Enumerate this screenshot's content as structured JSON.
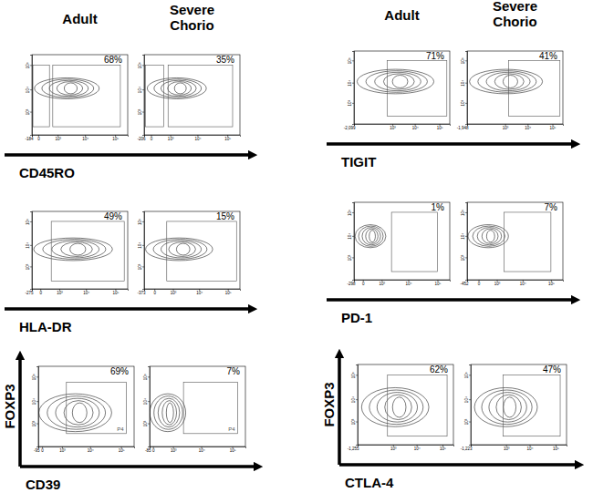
{
  "chart_data": [
    {
      "type": "contour",
      "title": "Adult",
      "xlabel": "CD45RO",
      "xlim": [
        -184,
        262144
      ],
      "ylim": [
        -300,
        262144
      ],
      "xticks": [
        -184,
        0,
        {
          "value": 1000,
          "label": "10³"
        },
        {
          "value": 10000,
          "label": "10⁴"
        },
        {
          "value": 100000,
          "label": "10⁵"
        }
      ],
      "yticks": [
        {
          "value": 1000,
          "label": "10³"
        },
        {
          "value": 10000,
          "label": "10⁴"
        },
        {
          "value": 100000,
          "label": "10⁵"
        }
      ],
      "population": {
        "x": [
          -100,
          30000
        ],
        "y": [
          4000,
          30000
        ]
      },
      "gates": [
        {
          "x": [
            -150,
            400
          ],
          "y": [
            20,
            100000
          ]
        },
        {
          "x": [
            600,
            150000
          ],
          "y": [
            20,
            100000
          ]
        }
      ],
      "values": [
        68
      ],
      "value_labels": [
        "68%"
      ],
      "data_labels": true
    },
    {
      "type": "contour",
      "title": "Severe Chorio",
      "xlim": [
        -206,
        262144
      ],
      "ylim": [
        -300,
        262144
      ],
      "xticks": [
        -206,
        0,
        {
          "value": 1000,
          "label": "10³"
        },
        {
          "value": 10000,
          "label": "10⁴"
        },
        {
          "value": 100000,
          "label": "10⁵"
        }
      ],
      "yticks": [
        {
          "value": 1000,
          "label": "10³"
        },
        {
          "value": 10000,
          "label": "10⁴"
        },
        {
          "value": 100000,
          "label": "10⁵"
        }
      ],
      "population": {
        "x": [
          -100,
          20000
        ],
        "y": [
          4000,
          30000
        ]
      },
      "gates": [
        {
          "x": [
            -150,
            500
          ],
          "y": [
            20,
            100000
          ]
        },
        {
          "x": [
            800,
            150000
          ],
          "y": [
            20,
            100000
          ]
        }
      ],
      "values": [
        35
      ],
      "value_labels": [
        "35%"
      ],
      "data_labels": true
    },
    {
      "type": "contour",
      "xlabel": "HLA-DR",
      "xlim": [
        -275,
        262144
      ],
      "ylim": [
        -300,
        262144
      ],
      "xticks": [
        -275,
        0,
        {
          "value": 1000,
          "label": "10³"
        },
        {
          "value": 10000,
          "label": "10⁴"
        },
        {
          "value": 100000,
          "label": "10⁵"
        }
      ],
      "yticks": [
        {
          "value": 1000,
          "label": "10³"
        },
        {
          "value": 10000,
          "label": "10⁴"
        },
        {
          "value": 100000,
          "label": "10⁵"
        }
      ],
      "population": {
        "x": [
          -200,
          80000
        ],
        "y": [
          2000,
          20000
        ]
      },
      "gates": [
        {
          "x": [
            400,
            200000
          ],
          "y": [
            20,
            100000
          ]
        }
      ],
      "values": [
        49
      ],
      "value_labels": [
        "49%"
      ],
      "data_labels": true
    },
    {
      "type": "contour",
      "xlim": [
        -373,
        262144
      ],
      "ylim": [
        -300,
        262144
      ],
      "xticks": [
        -373,
        0,
        {
          "value": 1000,
          "label": "10³"
        },
        {
          "value": 10000,
          "label": "10⁴"
        },
        {
          "value": 100000,
          "label": "10⁵"
        }
      ],
      "yticks": [
        {
          "value": 1000,
          "label": "10³"
        },
        {
          "value": 10000,
          "label": "10⁴"
        },
        {
          "value": 100000,
          "label": "10⁵"
        }
      ],
      "population": {
        "x": [
          -300,
          30000
        ],
        "y": [
          2000,
          20000
        ]
      },
      "gates": [
        {
          "x": [
            500,
            200000
          ],
          "y": [
            20,
            100000
          ]
        }
      ],
      "values": [
        15
      ],
      "value_labels": [
        "15%"
      ],
      "data_labels": true
    },
    {
      "type": "contour",
      "xlabel": "CD39",
      "ylabel": "FOXP3",
      "xlim": [
        -95,
        262144
      ],
      "ylim": [
        -300,
        262144
      ],
      "xticks": [
        -95,
        0,
        {
          "value": 1000,
          "label": "10³"
        },
        {
          "value": 10000,
          "label": "10⁴"
        },
        {
          "value": 100000,
          "label": "10⁵"
        }
      ],
      "yticks": [
        {
          "value": 1000,
          "label": "10³"
        },
        {
          "value": 10000,
          "label": "10⁴"
        },
        {
          "value": 100000,
          "label": "10⁵"
        }
      ],
      "population": {
        "x": [
          -80,
          50000
        ],
        "y": [
          300,
          20000
        ]
      },
      "gates": [
        {
          "x": [
            1500,
            150000
          ],
          "y": [
            200,
            60000
          ]
        }
      ],
      "gate_label": "P4",
      "values": [
        69
      ],
      "value_labels": [
        "69%"
      ],
      "data_labels": true
    },
    {
      "type": "contour",
      "xlim": [
        -85,
        262144
      ],
      "ylim": [
        -300,
        262144
      ],
      "xticks": [
        -85,
        0,
        {
          "value": 1000,
          "label": "10³"
        },
        {
          "value": 10000,
          "label": "10⁴"
        },
        {
          "value": 100000,
          "label": "10⁵"
        }
      ],
      "yticks": [
        {
          "value": 1000,
          "label": "10³"
        },
        {
          "value": 10000,
          "label": "10⁴"
        },
        {
          "value": 100000,
          "label": "10⁵"
        }
      ],
      "population": {
        "x": [
          -80,
          3000
        ],
        "y": [
          300,
          20000
        ]
      },
      "gates": [
        {
          "x": [
            2500,
            150000
          ],
          "y": [
            200,
            60000
          ]
        }
      ],
      "gate_label": "P4",
      "values": [
        7
      ],
      "value_labels": [
        "7%"
      ],
      "data_labels": true
    },
    {
      "type": "contour",
      "title": "Adult",
      "xlabel": "TIGIT",
      "xlim": [
        -2099,
        262144
      ],
      "ylim": [
        -300,
        262144
      ],
      "xticks": [
        {
          "value": -2099,
          "label": "-2,099"
        },
        {
          "value": 1000,
          "label": "10³"
        },
        {
          "value": 10000,
          "label": "10⁴"
        },
        {
          "value": 100000,
          "label": "10⁵"
        }
      ],
      "yticks": [
        {
          "value": 1000,
          "label": "10³"
        },
        {
          "value": 10000,
          "label": "10⁴"
        },
        {
          "value": 100000,
          "label": "10⁵"
        }
      ],
      "population": {
        "x": [
          -1500,
          60000
        ],
        "y": [
          3000,
          40000
        ]
      },
      "gates": [
        {
          "x": [
            500,
            200000
          ],
          "y": [
            30,
            100000
          ]
        }
      ],
      "values": [
        71
      ],
      "value_labels": [
        "71%"
      ],
      "data_labels": true
    },
    {
      "type": "contour",
      "title": "Severe Chorio",
      "xlim": [
        -1948,
        262144
      ],
      "ylim": [
        -300,
        262144
      ],
      "xticks": [
        {
          "value": -1948,
          "label": "-1,948"
        },
        {
          "value": 1000,
          "label": "10³"
        },
        {
          "value": 10000,
          "label": "10⁴"
        },
        {
          "value": 100000,
          "label": "10⁵"
        }
      ],
      "yticks": [
        {
          "value": 1000,
          "label": "10³"
        },
        {
          "value": 10000,
          "label": "10⁴"
        },
        {
          "value": 100000,
          "label": "10⁵"
        }
      ],
      "population": {
        "x": [
          -1500,
          40000
        ],
        "y": [
          3000,
          40000
        ]
      },
      "gates": [
        {
          "x": [
            1500,
            200000
          ],
          "y": [
            30,
            100000
          ]
        }
      ],
      "values": [
        41
      ],
      "value_labels": [
        "41%"
      ],
      "data_labels": true
    },
    {
      "type": "contour",
      "xlabel": "PD-1",
      "xlim": [
        -298,
        262144
      ],
      "ylim": [
        -300,
        262144
      ],
      "xticks": [
        -298,
        0,
        {
          "value": 1000,
          "label": "10³"
        },
        {
          "value": 10000,
          "label": "10⁴"
        },
        {
          "value": 100000,
          "label": "10⁵"
        }
      ],
      "yticks": [
        {
          "value": 1000,
          "label": "10³"
        },
        {
          "value": 10000,
          "label": "10⁴"
        },
        {
          "value": 100000,
          "label": "10⁵"
        }
      ],
      "population": {
        "x": [
          -250,
          1500
        ],
        "y": [
          3000,
          30000
        ]
      },
      "gates": [
        {
          "x": [
            2500,
            100000
          ],
          "y": [
            30,
            100000
          ]
        }
      ],
      "values": [
        1
      ],
      "value_labels": [
        "1%"
      ],
      "data_labels": true
    },
    {
      "type": "contour",
      "xlim": [
        -452,
        262144
      ],
      "ylim": [
        -300,
        262144
      ],
      "xticks": [
        -452,
        0,
        {
          "value": 1000,
          "label": "10³"
        },
        {
          "value": 10000,
          "label": "10⁴"
        },
        {
          "value": 100000,
          "label": "10⁵"
        }
      ],
      "yticks": [
        {
          "value": 1000,
          "label": "10³"
        },
        {
          "value": 10000,
          "label": "10⁴"
        },
        {
          "value": 100000,
          "label": "10⁵"
        }
      ],
      "population": {
        "x": [
          -400,
          3000
        ],
        "y": [
          3000,
          30000
        ]
      },
      "gates": [
        {
          "x": [
            2000,
            100000
          ],
          "y": [
            30,
            100000
          ]
        }
      ],
      "values": [
        7
      ],
      "value_labels": [
        "7%"
      ],
      "data_labels": true
    },
    {
      "type": "contour",
      "xlabel": "CTLA-4",
      "ylabel": "FOXP3",
      "xlim": [
        -1255,
        262144
      ],
      "ylim": [
        -300,
        262144
      ],
      "xticks": [
        {
          "value": -1255,
          "label": "-1,255"
        },
        {
          "value": 1000,
          "label": "10³"
        },
        {
          "value": 10000,
          "label": "10⁴"
        },
        {
          "value": 100000,
          "label": "10⁵"
        }
      ],
      "yticks": [
        {
          "value": 1000,
          "label": "10³"
        },
        {
          "value": 10000,
          "label": "10⁴"
        },
        {
          "value": 100000,
          "label": "10⁵"
        }
      ],
      "population": {
        "x": [
          -800,
          30000
        ],
        "y": [
          500,
          30000
        ]
      },
      "gates": [
        {
          "x": [
            500,
            150000
          ],
          "y": [
            30,
            100000
          ]
        }
      ],
      "values": [
        62
      ],
      "value_labels": [
        "62%"
      ],
      "data_labels": true
    },
    {
      "type": "contour",
      "xlim": [
        -1223,
        262144
      ],
      "ylim": [
        -300,
        262144
      ],
      "xticks": [
        {
          "value": -1223,
          "label": "-1,223"
        },
        {
          "value": 1000,
          "label": "10³"
        },
        {
          "value": 10000,
          "label": "10⁴"
        },
        {
          "value": 100000,
          "label": "10⁵"
        }
      ],
      "yticks": [
        {
          "value": 1000,
          "label": "10³"
        },
        {
          "value": 10000,
          "label": "10⁴"
        },
        {
          "value": 100000,
          "label": "10⁵"
        }
      ],
      "population": {
        "x": [
          -800,
          20000
        ],
        "y": [
          500,
          30000
        ]
      },
      "gates": [
        {
          "x": [
            700,
            150000
          ],
          "y": [
            30,
            100000
          ]
        }
      ],
      "values": [
        47
      ],
      "value_labels": [
        "47%"
      ],
      "data_labels": true
    }
  ]
}
